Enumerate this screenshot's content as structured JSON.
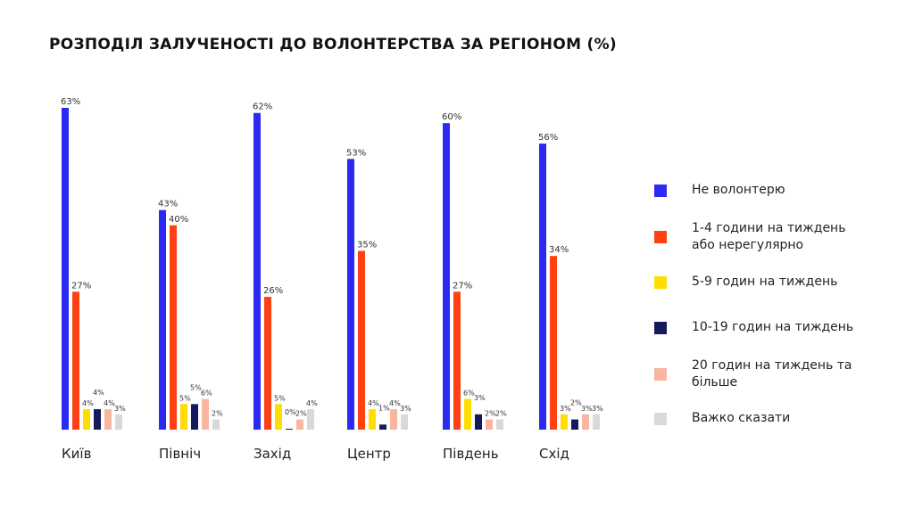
{
  "chart_data": {
    "type": "bar",
    "title": "РОЗПОДІЛ ЗАЛУЧЕНОСТІ ДО ВОЛОНТЕРСТВА ЗА РЕГІОНОМ (%)",
    "categories": [
      "Київ",
      "Північ",
      "Захід",
      "Центр",
      "Південь",
      "Схід"
    ],
    "series": [
      {
        "name": "Не волонтерю",
        "color": "#2a2af0",
        "values": [
          63,
          43,
          62,
          53,
          60,
          56
        ]
      },
      {
        "name": "1-4 години на тиждень або нерегулярно",
        "color": "#ff4012",
        "values": [
          27,
          40,
          26,
          35,
          27,
          34
        ]
      },
      {
        "name": "5-9 годин на тиждень",
        "color": "#ffdd00",
        "values": [
          4,
          5,
          5,
          4,
          6,
          3
        ]
      },
      {
        "name": "10-19 годин на тиждень",
        "color": "#141a5c",
        "values": [
          4,
          5,
          0,
          1,
          3,
          2
        ]
      },
      {
        "name": "20 годин на тиждень та більше",
        "color": "#f9b5a0",
        "values": [
          4,
          6,
          2,
          4,
          2,
          3
        ]
      },
      {
        "name": "Важко сказати",
        "color": "#d9d9d9",
        "values": [
          3,
          2,
          4,
          3,
          2,
          3
        ]
      }
    ],
    "value_suffix": "%",
    "ylim": [
      0,
      65
    ],
    "grid": false,
    "legend": "right"
  }
}
